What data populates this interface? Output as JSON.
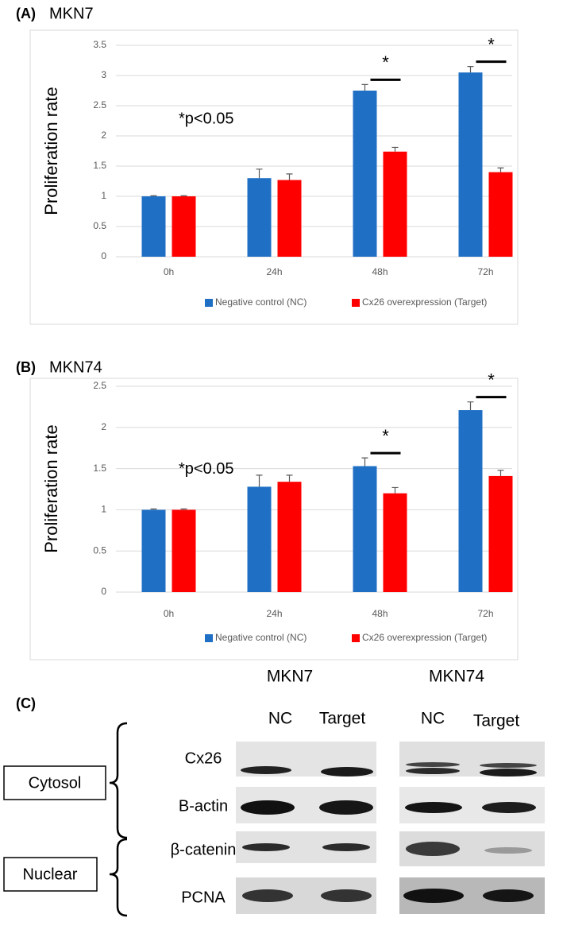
{
  "chart_data": [
    {
      "type": "bar",
      "panel": "(A)",
      "title": "MKN7",
      "y_label": "Proliferation rate",
      "categories": [
        "0h",
        "24h",
        "48h",
        "72h"
      ],
      "series": [
        {
          "name": "Negative control (NC)",
          "color": "#1f6fc5",
          "values": [
            1.0,
            1.3,
            2.75,
            3.05
          ],
          "errors": [
            0.01,
            0.15,
            0.1,
            0.1
          ]
        },
        {
          "name": "Cx26 overexpression (Target)",
          "color": "#ff0000",
          "values": [
            1.0,
            1.27,
            1.74,
            1.4
          ],
          "errors": [
            0.01,
            0.1,
            0.07,
            0.07
          ]
        }
      ],
      "ylim": [
        0,
        3.5
      ],
      "yticks": [
        0,
        0.5,
        1,
        1.5,
        2,
        2.5,
        3,
        3.5
      ],
      "grid": true,
      "annotations": [
        "*p<0.05",
        "*",
        "*"
      ]
    },
    {
      "type": "bar",
      "panel": "(B)",
      "title": "MKN74",
      "y_label": "Proliferation rate",
      "categories": [
        "0h",
        "24h",
        "48h",
        "72h"
      ],
      "series": [
        {
          "name": "Negative control (NC)",
          "color": "#1f6fc5",
          "values": [
            1.0,
            1.28,
            1.53,
            2.21
          ],
          "errors": [
            0.01,
            0.14,
            0.1,
            0.1
          ]
        },
        {
          "name": "Cx26 overexpression (Target)",
          "color": "#ff0000",
          "values": [
            1.0,
            1.34,
            1.2,
            1.41
          ],
          "errors": [
            0.01,
            0.08,
            0.07,
            0.07
          ]
        }
      ],
      "ylim": [
        0,
        2.5
      ],
      "yticks": [
        0,
        0.5,
        1,
        1.5,
        2,
        2.5
      ],
      "grid": true,
      "annotations": [
        "*p<0.05",
        "*",
        "*"
      ]
    }
  ],
  "blot": {
    "panel": "(C)",
    "groups": [
      "MKN7",
      "MKN74"
    ],
    "lanes": [
      "NC",
      "Target",
      "NC",
      "Target"
    ],
    "proteins": [
      "Cx26",
      "B-actin",
      "β-catenin",
      "PCNA"
    ],
    "fractions": [
      "Cytosol",
      "Nuclear"
    ]
  }
}
